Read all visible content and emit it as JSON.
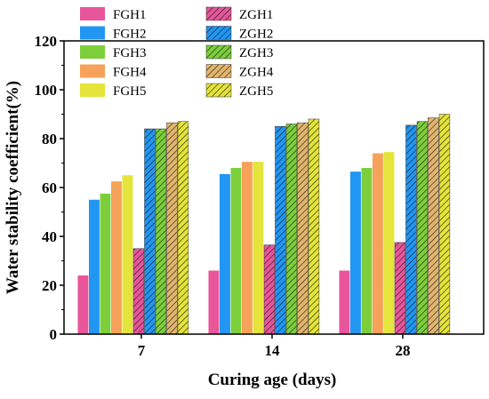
{
  "chart_data": {
    "type": "bar",
    "categories": [
      "7",
      "14",
      "28"
    ],
    "xlabel": "Curing age (days)",
    "ylabel": "Water stability coefficient(%)",
    "ylim": [
      0,
      120
    ],
    "yticks": [
      "0",
      "20",
      "40",
      "60",
      "80",
      "100",
      "120"
    ],
    "grid": false,
    "legend_position": "top-left, inside plot, two columns",
    "series": [
      {
        "name": "FGH1",
        "values": [
          24,
          26,
          26
        ],
        "color": "#e8559a",
        "hatched": false
      },
      {
        "name": "FGH2",
        "values": [
          55,
          65.5,
          66.5
        ],
        "color": "#2196f3",
        "hatched": false
      },
      {
        "name": "FGH3",
        "values": [
          57.5,
          68,
          68
        ],
        "color": "#7ccf3b",
        "hatched": false
      },
      {
        "name": "FGH4",
        "values": [
          62.5,
          70.5,
          74
        ],
        "color": "#f6a25a",
        "hatched": false
      },
      {
        "name": "FGH5",
        "values": [
          65,
          70.5,
          74.5
        ],
        "color": "#e4e43a",
        "hatched": false
      },
      {
        "name": "ZGH1",
        "values": [
          35,
          36.5,
          37.5
        ],
        "color": "#e8559a",
        "hatched": true
      },
      {
        "name": "ZGH2",
        "values": [
          84,
          85,
          85.5
        ],
        "color": "#2196f3",
        "hatched": true
      },
      {
        "name": "ZGH3",
        "values": [
          84,
          86,
          87
        ],
        "color": "#7ccf3b",
        "hatched": true
      },
      {
        "name": "ZGH4",
        "values": [
          86.5,
          86.5,
          88.5
        ],
        "color": "#e2b56c",
        "hatched": true
      },
      {
        "name": "ZGH5",
        "values": [
          87,
          88,
          90
        ],
        "color": "#e4e43a",
        "hatched": true
      }
    ]
  }
}
